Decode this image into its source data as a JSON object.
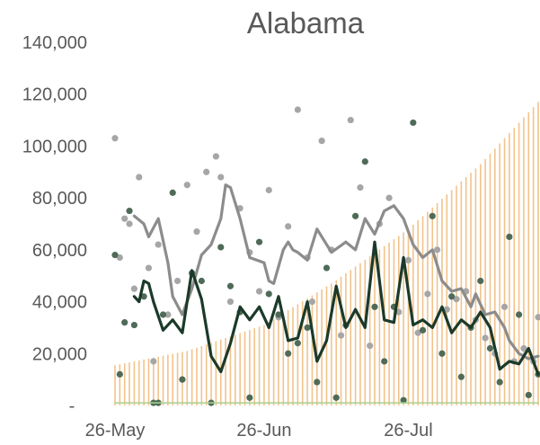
{
  "chart_data": {
    "type": "line",
    "title": "Alabama",
    "xlabel": "",
    "ylabel": "",
    "ylim": [
      0,
      140000
    ],
    "y_ticks": [
      {
        "value": 0,
        "label": "-"
      },
      {
        "value": 20000,
        "label": "20,000"
      },
      {
        "value": 40000,
        "label": "40,000"
      },
      {
        "value": 60000,
        "label": "60,000"
      },
      {
        "value": 80000,
        "label": "80,000"
      },
      {
        "value": 100000,
        "label": "100,000"
      },
      {
        "value": 120000,
        "label": "120,000"
      },
      {
        "value": 140000,
        "label": "140,000"
      }
    ],
    "x_start": "2020-05-26",
    "x_end": "2020-08-22",
    "x_ticks": [
      {
        "value": "2020-05-26",
        "label": "26-May"
      },
      {
        "value": "2020-06-26",
        "label": "26-Jun"
      },
      {
        "value": "2020-07-26",
        "label": "26-Jul"
      }
    ],
    "grid": false,
    "legend": "none",
    "colors": {
      "bars": "#f2c38c",
      "light_line": "#8c8c8c",
      "light_points": "#a6a6a6",
      "dark_line": "#1b3a2a",
      "dark_points": "#4f6b58",
      "thin_line": "#a9d18e",
      "text": "#595959"
    },
    "bars": {
      "x": [
        "2020-05-26",
        "2020-06-10",
        "2020-06-26",
        "2020-07-10",
        "2020-07-26",
        "2020-08-10",
        "2020-08-22"
      ],
      "values": [
        15500,
        21000,
        31000,
        47000,
        68000,
        93000,
        117000
      ]
    },
    "series": [
      {
        "style": "line",
        "color": "#8c8c8c",
        "x": [
          "2020-05-30",
          "2020-06-01",
          "2020-06-02",
          "2020-06-04",
          "2020-06-06",
          "2020-06-07",
          "2020-06-09",
          "2020-06-11",
          "2020-06-13",
          "2020-06-15",
          "2020-06-17",
          "2020-06-18",
          "2020-06-19",
          "2020-06-21",
          "2020-06-23",
          "2020-06-26",
          "2020-06-27",
          "2020-06-28",
          "2020-06-30",
          "2020-07-01",
          "2020-07-02",
          "2020-07-03",
          "2020-07-05",
          "2020-07-07",
          "2020-07-10",
          "2020-07-13",
          "2020-07-15",
          "2020-07-17",
          "2020-07-19",
          "2020-07-21",
          "2020-07-23",
          "2020-07-25",
          "2020-07-27",
          "2020-07-29",
          "2020-07-31",
          "2020-08-02",
          "2020-08-04",
          "2020-08-06",
          "2020-08-08",
          "2020-08-09",
          "2020-08-11",
          "2020-08-13",
          "2020-08-15",
          "2020-08-16",
          "2020-08-18",
          "2020-08-20",
          "2020-08-22"
        ],
        "values": [
          73000,
          70000,
          65000,
          72000,
          55000,
          42000,
          35000,
          45000,
          58000,
          62000,
          72000,
          85000,
          84000,
          72000,
          57000,
          55000,
          48000,
          47000,
          60000,
          63000,
          60000,
          59000,
          56000,
          68000,
          59000,
          63000,
          60000,
          72000,
          66000,
          75000,
          77000,
          72000,
          62000,
          57000,
          60000,
          48000,
          44000,
          45000,
          38000,
          43000,
          35000,
          36000,
          30000,
          25000,
          20000,
          18000,
          19000
        ]
      },
      {
        "style": "line",
        "color": "#1b3a2a",
        "x": [
          "2020-05-30",
          "2020-05-31",
          "2020-06-01",
          "2020-06-02",
          "2020-06-03",
          "2020-06-05",
          "2020-06-07",
          "2020-06-09",
          "2020-06-11",
          "2020-06-13",
          "2020-06-15",
          "2020-06-17",
          "2020-06-19",
          "2020-06-21",
          "2020-06-23",
          "2020-06-25",
          "2020-06-27",
          "2020-06-29",
          "2020-07-01",
          "2020-07-03",
          "2020-07-05",
          "2020-07-07",
          "2020-07-09",
          "2020-07-11",
          "2020-07-13",
          "2020-07-15",
          "2020-07-17",
          "2020-07-19",
          "2020-07-21",
          "2020-07-23",
          "2020-07-25",
          "2020-07-27",
          "2020-07-29",
          "2020-07-31",
          "2020-08-02",
          "2020-08-04",
          "2020-08-06",
          "2020-08-08",
          "2020-08-10",
          "2020-08-12",
          "2020-08-14",
          "2020-08-16",
          "2020-08-18",
          "2020-08-20",
          "2020-08-22"
        ],
        "values": [
          42000,
          40000,
          48000,
          47000,
          40000,
          29000,
          33000,
          28000,
          52000,
          41000,
          19000,
          13000,
          24000,
          38000,
          33000,
          38000,
          30000,
          42000,
          25000,
          26000,
          40000,
          17000,
          25000,
          46000,
          30000,
          37000,
          30000,
          63000,
          33000,
          32000,
          57000,
          31000,
          33000,
          30000,
          38000,
          28000,
          33000,
          30000,
          36000,
          30000,
          14000,
          17000,
          16000,
          22000,
          12000
        ]
      },
      {
        "style": "line",
        "color": "#a9d18e",
        "x": [
          "2020-05-26",
          "2020-08-22"
        ],
        "values": [
          1000,
          1000
        ]
      },
      {
        "style": "points",
        "color": "#a6a6a6",
        "x": [
          "2020-05-26",
          "2020-05-27",
          "2020-05-28",
          "2020-05-29",
          "2020-05-30",
          "2020-05-31",
          "2020-06-02",
          "2020-06-03",
          "2020-06-04",
          "2020-06-06",
          "2020-06-08",
          "2020-06-10",
          "2020-06-12",
          "2020-06-14",
          "2020-06-16",
          "2020-06-17",
          "2020-06-19",
          "2020-06-21",
          "2020-06-23",
          "2020-06-25",
          "2020-06-27",
          "2020-06-29",
          "2020-07-01",
          "2020-07-03",
          "2020-07-05",
          "2020-07-06",
          "2020-07-08",
          "2020-07-10",
          "2020-07-12",
          "2020-07-14",
          "2020-07-16",
          "2020-07-18",
          "2020-07-20",
          "2020-07-22",
          "2020-07-24",
          "2020-07-26",
          "2020-07-28",
          "2020-07-30",
          "2020-08-01",
          "2020-08-03",
          "2020-08-05",
          "2020-08-07",
          "2020-08-09",
          "2020-08-11",
          "2020-08-13",
          "2020-08-15",
          "2020-08-17",
          "2020-08-19",
          "2020-08-21",
          "2020-08-22"
        ],
        "values": [
          103000,
          57000,
          72000,
          70000,
          45000,
          88000,
          53000,
          17000,
          62000,
          35000,
          48000,
          85000,
          67000,
          90000,
          96000,
          88000,
          40000,
          76000,
          59000,
          44000,
          83000,
          34000,
          69000,
          114000,
          57000,
          40000,
          102000,
          60000,
          27000,
          110000,
          84000,
          23000,
          70000,
          80000,
          36000,
          56000,
          28000,
          43000,
          60000,
          37000,
          41000,
          44000,
          33000,
          26000,
          20000,
          38000,
          17000,
          22000,
          17000,
          34000
        ]
      },
      {
        "style": "points",
        "color": "#4f6b58",
        "x": [
          "2020-05-26",
          "2020-05-27",
          "2020-05-28",
          "2020-05-29",
          "2020-05-30",
          "2020-06-01",
          "2020-06-03",
          "2020-06-04",
          "2020-06-05",
          "2020-06-07",
          "2020-06-09",
          "2020-06-11",
          "2020-06-13",
          "2020-06-15",
          "2020-06-17",
          "2020-06-19",
          "2020-06-21",
          "2020-06-23",
          "2020-06-25",
          "2020-06-27",
          "2020-06-29",
          "2020-07-01",
          "2020-07-03",
          "2020-07-05",
          "2020-07-07",
          "2020-07-09",
          "2020-07-11",
          "2020-07-13",
          "2020-07-15",
          "2020-07-17",
          "2020-07-19",
          "2020-07-21",
          "2020-07-23",
          "2020-07-25",
          "2020-07-27",
          "2020-07-29",
          "2020-07-31",
          "2020-08-02",
          "2020-08-04",
          "2020-08-06",
          "2020-08-08",
          "2020-08-10",
          "2020-08-12",
          "2020-08-14",
          "2020-08-16",
          "2020-08-18",
          "2020-08-20",
          "2020-08-22"
        ],
        "values": [
          58000,
          12000,
          32000,
          75000,
          31000,
          42000,
          1000,
          1000,
          35000,
          82000,
          10000,
          51000,
          48000,
          1000,
          61000,
          46000,
          36000,
          3000,
          63000,
          43000,
          35000,
          20000,
          24000,
          30000,
          9000,
          53000,
          3000,
          31000,
          73000,
          94000,
          38000,
          17000,
          38000,
          2000,
          109000,
          29000,
          73000,
          20000,
          42000,
          11000,
          30000,
          48000,
          22000,
          9000,
          65000,
          35000,
          4000,
          12000
        ]
      }
    ]
  }
}
